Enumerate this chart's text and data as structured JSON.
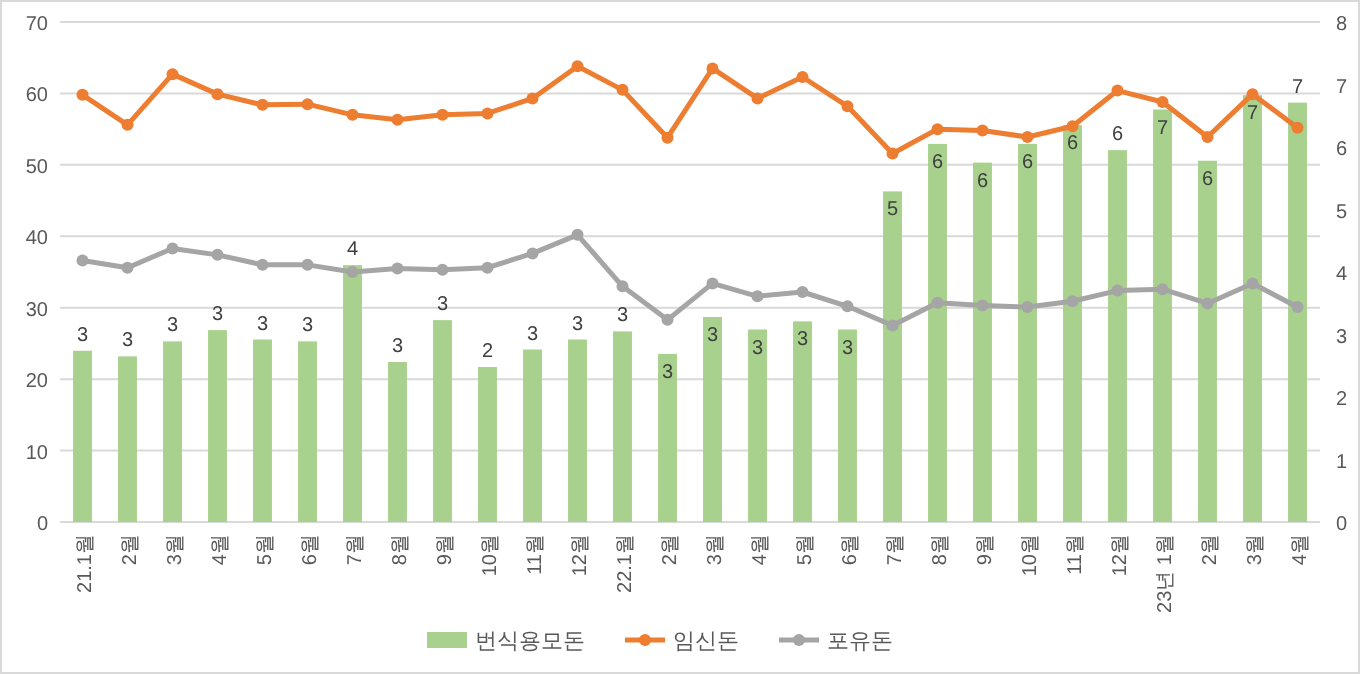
{
  "chart_data": {
    "type": "bar",
    "categories": [
      "21.1월",
      "2월",
      "3월",
      "4월",
      "5월",
      "6월",
      "7월",
      "8월",
      "9월",
      "10월",
      "11월",
      "12월",
      "22.1월",
      "2월",
      "3월",
      "4월",
      "5월",
      "6월",
      "7월",
      "8월",
      "9월",
      "10월",
      "11월",
      "12월",
      "23년 1월",
      "2월",
      "3월",
      "4월"
    ],
    "series": [
      {
        "name": "번식용모돈",
        "axis": "y2",
        "color": "#a9d18e",
        "values": [
          2.74,
          2.65,
          2.89,
          3.07,
          2.92,
          2.89,
          4.11,
          2.56,
          3.23,
          2.48,
          2.76,
          2.92,
          3.05,
          2.69,
          3.28,
          3.08,
          3.21,
          3.08,
          5.29,
          6.05,
          5.75,
          6.05,
          6.35,
          5.95,
          6.6,
          5.78,
          6.83,
          6.71
        ],
        "value_labels": [
          "3",
          "3",
          "3",
          "3",
          "3",
          "3",
          "4",
          "3",
          "3",
          "2",
          "3",
          "3",
          "3",
          "3",
          "3",
          "3",
          "3",
          "3",
          "5",
          "6",
          "6",
          "6",
          "6",
          "6",
          "7",
          "6",
          "7",
          "7"
        ]
      },
      {
        "name": "임신돈",
        "type": "line",
        "color": "#ed7d31",
        "marker": "circle",
        "values": [
          59.8,
          55.6,
          62.7,
          59.9,
          58.4,
          58.5,
          57.0,
          56.3,
          57.0,
          57.2,
          59.3,
          63.8,
          60.5,
          53.8,
          63.5,
          59.3,
          62.3,
          58.2,
          51.6,
          55.0,
          54.8,
          53.9,
          55.4,
          60.4,
          58.8,
          53.9,
          59.9,
          55.2
        ]
      },
      {
        "name": "포유돈",
        "type": "line",
        "color": "#a5a5a5",
        "marker": "circle",
        "values": [
          36.6,
          35.6,
          38.3,
          37.4,
          36.0,
          36.0,
          35.0,
          35.5,
          35.3,
          35.6,
          37.6,
          40.2,
          33.0,
          28.3,
          33.4,
          31.6,
          32.2,
          30.2,
          27.5,
          30.7,
          30.3,
          30.1,
          30.9,
          32.4,
          32.6,
          30.6,
          33.4,
          30.1
        ]
      }
    ],
    "ylim": [
      0,
      70
    ],
    "yticks": [
      0,
      10,
      20,
      30,
      40,
      50,
      60,
      70
    ],
    "y2lim": [
      0,
      8
    ],
    "y2ticks": [
      0,
      1,
      2,
      3,
      4,
      5,
      6,
      7,
      8
    ],
    "grid": "y",
    "legend": "bottom"
  }
}
